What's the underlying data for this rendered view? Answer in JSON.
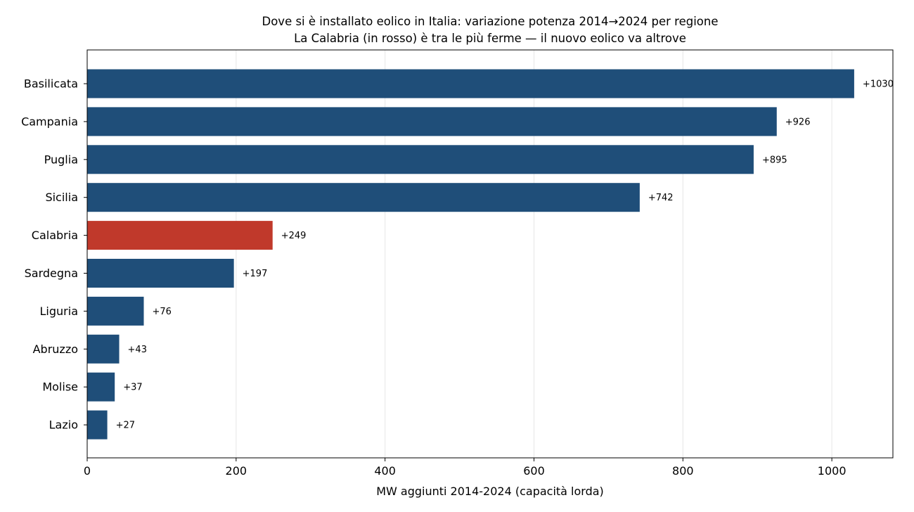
{
  "chart_data": {
    "type": "bar",
    "orientation": "horizontal",
    "title": "Dove si è installato eolico in Italia: variazione potenza 2014→2024 per regione",
    "subtitle": "La Calabria (in rosso) è tra le più ferme — il nuovo eolico va altrove",
    "xlabel": "MW aggiunti 2014-2024 (capacità lorda)",
    "ylabel": "",
    "xlim": [
      0,
      1082
    ],
    "xticks": [
      0,
      200,
      400,
      600,
      800,
      1000
    ],
    "grid": "x-only",
    "categories": [
      "Basilicata",
      "Campania",
      "Puglia",
      "Sicilia",
      "Calabria",
      "Sardegna",
      "Liguria",
      "Abruzzo",
      "Molise",
      "Lazio"
    ],
    "values": [
      1030,
      926,
      895,
      742,
      249,
      197,
      76,
      43,
      37,
      27
    ],
    "value_labels": [
      "+1030",
      "+926",
      "+895",
      "+742",
      "+249",
      "+197",
      "+76",
      "+43",
      "+37",
      "+27"
    ],
    "highlight": "Calabria",
    "colors": {
      "default": "#1f4e79",
      "highlight": "#c0392b",
      "grid": "#e6e6e6"
    }
  }
}
